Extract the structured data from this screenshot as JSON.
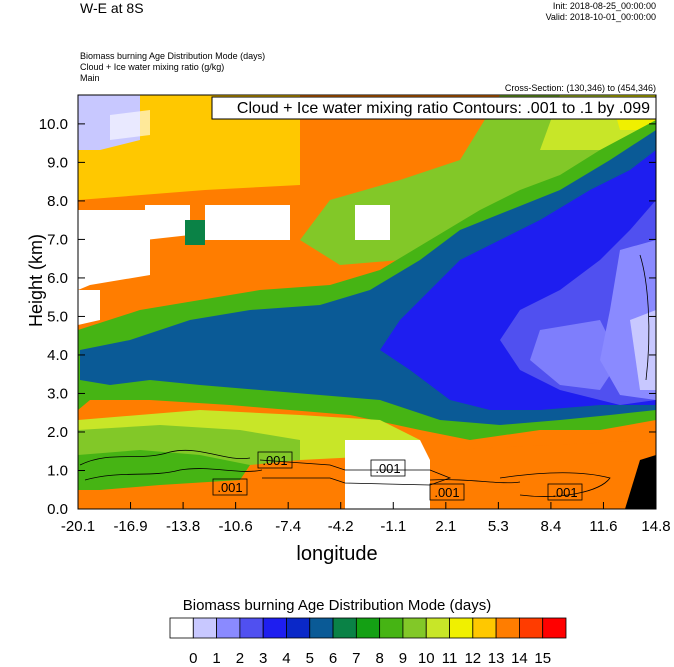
{
  "header": {
    "title": "W-E at 8S",
    "init": "Init: 2018-08-25_00:00:00",
    "valid": "Valid: 2018-10-01_00:00:00",
    "field1": "Biomass burning Age Distribution Mode   (days)",
    "field2": "Cloud + Ice water mixing ratio   (g/kg)",
    "field3": "Main",
    "cross_section": "Cross-Section: (130,346) to (454,346)"
  },
  "chart_data": {
    "type": "heatmap",
    "title": "Cloud + Ice water mixing ratio Contours: .001 to .1 by .099",
    "xlabel": "longitude",
    "ylabel": "Height (km)",
    "x_ticks": [
      "-20.1",
      "-16.9",
      "-13.8",
      "-10.6",
      "-7.4",
      "-4.2",
      "-1.1",
      "2.1",
      "5.3",
      "8.4",
      "11.6",
      "14.8"
    ],
    "y_ticks": [
      "0.0",
      "1.0",
      "2.0",
      "3.0",
      "4.0",
      "5.0",
      "6.0",
      "7.0",
      "8.0",
      "9.0",
      "10.0"
    ],
    "xlim": [
      -20.1,
      14.8
    ],
    "ylim": [
      0.0,
      10.75
    ],
    "contour_labels": [
      ".001",
      ".001",
      ".001",
      ".001",
      ".001"
    ],
    "colorbar": {
      "title": "Biomass burning Age Distribution Mode  (days)",
      "labels": [
        "0",
        "1",
        "2",
        "3",
        "4",
        "5",
        "6",
        "7",
        "8",
        "9",
        "10",
        "11",
        "12",
        "13",
        "14",
        "15"
      ],
      "colors": [
        "#ffffff",
        "#c8c8ff",
        "#8a8aff",
        "#5050f0",
        "#1e1ef0",
        "#0a28c8",
        "#0a5a96",
        "#0a8246",
        "#14a014",
        "#46b414",
        "#82c828",
        "#c8e628",
        "#f0f000",
        "#ffc800",
        "#ff7d00",
        "#ff3c00",
        "#ff0000"
      ]
    }
  }
}
